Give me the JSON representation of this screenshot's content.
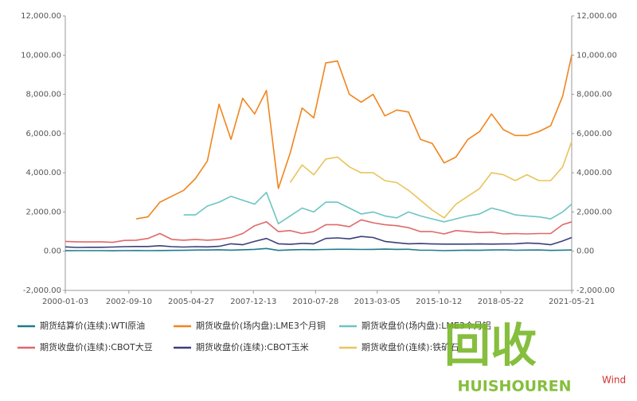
{
  "chart_data": {
    "type": "line",
    "x": [
      "2000-01-03",
      "2000-07-01",
      "2001-01-01",
      "2001-07-01",
      "2002-01-01",
      "2002-07-01",
      "2003-01-01",
      "2003-07-01",
      "2004-01-01",
      "2004-07-01",
      "2005-01-01",
      "2005-07-01",
      "2006-01-01",
      "2006-07-01",
      "2007-01-01",
      "2007-07-01",
      "2008-01-01",
      "2008-07-01",
      "2009-01-01",
      "2009-07-01",
      "2010-01-01",
      "2010-07-01",
      "2011-01-01",
      "2011-07-01",
      "2012-01-01",
      "2012-07-01",
      "2013-01-01",
      "2013-07-01",
      "2014-01-01",
      "2014-07-01",
      "2015-01-01",
      "2015-07-01",
      "2016-01-01",
      "2016-07-01",
      "2017-01-01",
      "2017-07-01",
      "2018-01-01",
      "2018-07-01",
      "2019-01-01",
      "2019-07-01",
      "2020-01-01",
      "2020-07-01",
      "2021-01-01",
      "2021-05-21"
    ],
    "xlim": [
      "2000-01-03",
      "2021-05-21"
    ],
    "xticks": [
      "2000-01-03",
      "2002-09-10",
      "2005-04-27",
      "2007-12-13",
      "2010-07-28",
      "2013-03-05",
      "2015-10-12",
      "2018-05-22",
      "2021-05-21"
    ],
    "ylim": [
      -2000,
      12000
    ],
    "yticks": [
      {
        "value": -2000,
        "label": "-2,000.00"
      },
      {
        "value": 0,
        "label": "0.00"
      },
      {
        "value": 2000,
        "label": "2,000.00"
      },
      {
        "value": 4000,
        "label": "4,000.00"
      },
      {
        "value": 6000,
        "label": "6,000.00"
      },
      {
        "value": 8000,
        "label": "8,000.00"
      },
      {
        "value": 10000,
        "label": "10,000.00"
      },
      {
        "value": 12000,
        "label": "12,000.00"
      }
    ],
    "y2lim": [
      -2000,
      12000
    ],
    "y2ticks": [
      {
        "value": -2000,
        "label": "-2,000.00"
      },
      {
        "value": 0,
        "label": "0.00"
      },
      {
        "value": 2000,
        "label": "2,000.00"
      },
      {
        "value": 4000,
        "label": "4,000.00"
      },
      {
        "value": 6000,
        "label": "6,000.00"
      },
      {
        "value": 8000,
        "label": "8,000.00"
      },
      {
        "value": 10000,
        "label": "10,000.00"
      },
      {
        "value": 12000,
        "label": "12,000.00"
      }
    ],
    "series": [
      {
        "name": "期货结算价(连续):WTI原油",
        "color": "#1f7a8c",
        "values": [
          25,
          30,
          28,
          27,
          20,
          27,
          32,
          30,
          34,
          40,
          46,
          58,
          63,
          74,
          54,
          75,
          95,
          140,
          40,
          65,
          80,
          77,
          90,
          96,
          100,
          88,
          95,
          105,
          95,
          100,
          48,
          50,
          30,
          42,
          52,
          47,
          60,
          70,
          50,
          58,
          60,
          40,
          52,
          63
        ]
      },
      {
        "name": "期货收盘价(场内盘):LME3个月铜",
        "color": "#f0851d",
        "values": [
          null,
          null,
          null,
          null,
          null,
          null,
          1650,
          1750,
          2500,
          2800,
          3100,
          3700,
          4600,
          7500,
          5700,
          7800,
          7000,
          8200,
          3200,
          5000,
          7300,
          6800,
          9600,
          9700,
          8000,
          7600,
          8000,
          6900,
          7200,
          7100,
          5700,
          5500,
          4500,
          4800,
          5700,
          6100,
          7000,
          6200,
          5900,
          5900,
          6100,
          6400,
          7900,
          10000
        ]
      },
      {
        "name": "期货收盘价(场内盘):LME3个月铝",
        "color": "#6cc5c3",
        "values": [
          null,
          null,
          null,
          null,
          null,
          null,
          null,
          null,
          null,
          null,
          1850,
          1850,
          2300,
          2500,
          2800,
          2600,
          2400,
          3000,
          1400,
          1800,
          2200,
          2000,
          2500,
          2500,
          2200,
          1900,
          2000,
          1800,
          1700,
          2000,
          1800,
          1650,
          1500,
          1650,
          1800,
          1900,
          2200,
          2050,
          1850,
          1800,
          1750,
          1650,
          2000,
          2400
        ]
      },
      {
        "name": "期货收盘价(连续):CBOT大豆",
        "color": "#e0686a",
        "values": [
          500,
          480,
          470,
          480,
          450,
          550,
          560,
          650,
          900,
          600,
          560,
          600,
          560,
          600,
          700,
          900,
          1300,
          1500,
          1000,
          1050,
          900,
          1000,
          1350,
          1350,
          1250,
          1600,
          1450,
          1350,
          1300,
          1200,
          1000,
          1000,
          880,
          1050,
          1000,
          950,
          970,
          880,
          900,
          880,
          900,
          900,
          1350,
          1500
        ]
      },
      {
        "name": "期货收盘价(连续):CBOT玉米",
        "color": "#3b3f7a",
        "values": [
          220,
          190,
          200,
          200,
          210,
          230,
          240,
          240,
          280,
          230,
          210,
          230,
          220,
          250,
          380,
          330,
          500,
          650,
          380,
          350,
          400,
          380,
          650,
          680,
          630,
          750,
          700,
          500,
          430,
          380,
          390,
          370,
          360,
          360,
          360,
          370,
          360,
          370,
          380,
          420,
          390,
          330,
          520,
          700
        ]
      },
      {
        "name": "期货收盘价(连续):铁矿石",
        "color": "#e8c55a",
        "values": [
          null,
          null,
          null,
          null,
          null,
          null,
          null,
          null,
          null,
          null,
          null,
          null,
          null,
          null,
          null,
          null,
          null,
          null,
          null,
          3500,
          4400,
          3900,
          4700,
          4800,
          4300,
          4000,
          4000,
          3600,
          3500,
          3100,
          2600,
          2100,
          1700,
          2400,
          2800,
          3200,
          4000,
          3900,
          3600,
          3900,
          3600,
          3600,
          4300,
          5600
        ]
      }
    ],
    "source": "Wind",
    "watermark": {
      "mark": "回收",
      "brand": "HUISHOUREN"
    }
  }
}
